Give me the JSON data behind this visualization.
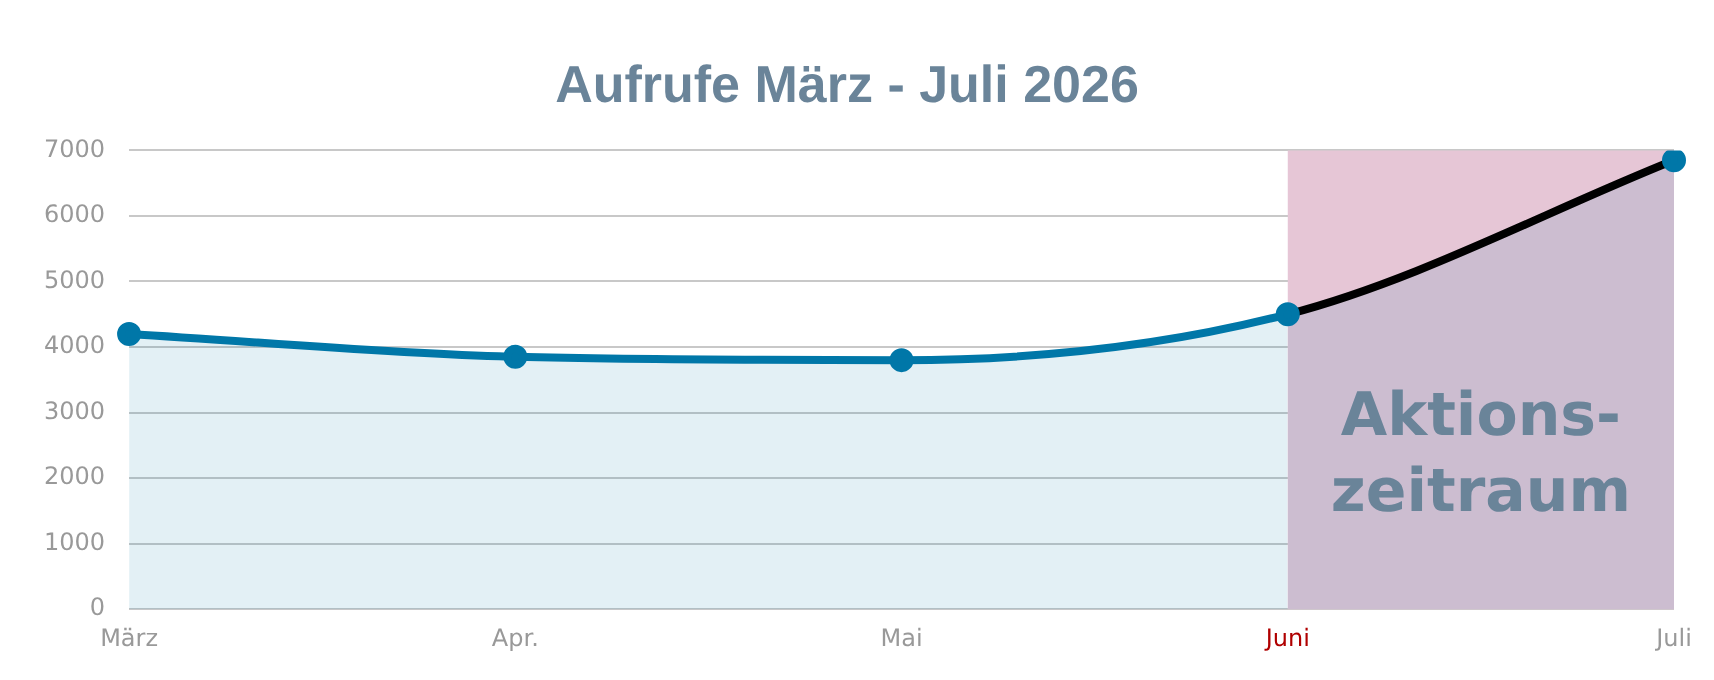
{
  "chart_data": {
    "type": "area",
    "title": "Aufrufe März - Juli 2026",
    "categories": [
      "März",
      "Apr.",
      "Mai",
      "Juni",
      "Juli"
    ],
    "series": [
      {
        "color": "#0077a8",
        "values": [
          4200,
          3850,
          3800,
          4500,
          6850
        ]
      }
    ],
    "ylim": [
      0,
      7000
    ],
    "yticks": [
      0,
      1000,
      2000,
      3000,
      4000,
      5000,
      6000,
      7000
    ],
    "grid": "y",
    "legend": false,
    "marker": "circle",
    "bands": [
      {
        "axis": "x",
        "from": "Juni",
        "to": "Juli",
        "label": "Aktions-\nzeitraum",
        "color": "#e6c6d6"
      }
    ]
  }
}
